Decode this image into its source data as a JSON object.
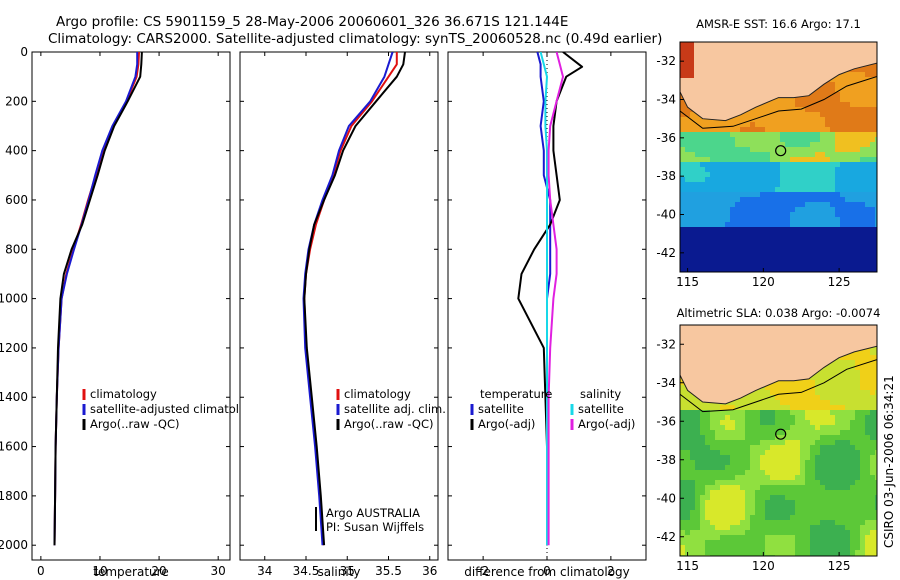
{
  "header": {
    "line1": "Argo profile: CS 5901159_5 28-May-2006 20060601_326 36.671S 121.144E",
    "line2": "Climatology: CARS2000. Satellite-adjusted climatology: synTS_20060528.nc (0.49d earlier)"
  },
  "side_stamp": "CSIRO 03-Jun-2006 06:34:21",
  "colors": {
    "red": "#e01010",
    "blue": "#1a1ad0",
    "black": "#000000",
    "cyan": "#18d8e8",
    "magenta": "#e020e0",
    "land": "#f7c7a0",
    "coast": "#222222"
  },
  "chart_data": [
    {
      "type": "line",
      "title": "",
      "xlabel": "temperature",
      "ylabel": "",
      "xlim": [
        -1.5,
        32
      ],
      "ylim": [
        0,
        2060
      ],
      "y_reversed": true,
      "xticks": [
        "0",
        "10",
        "20",
        "30"
      ],
      "yticks": [
        "0",
        "200",
        "400",
        "600",
        "800",
        "1000",
        "1200",
        "1400",
        "1600",
        "1800",
        "2000"
      ],
      "legend": [
        {
          "label": "climatology",
          "color": "#e01010"
        },
        {
          "label": "satellite-adjusted climatology",
          "color": "#1a1ad0"
        },
        {
          "label": "Argo(..raw -QC)",
          "color": "#000000"
        }
      ],
      "series": [
        {
          "name": "climatology",
          "color": "#e01010",
          "x": [
            16.6,
            16.5,
            16.2,
            14.5,
            12.3,
            10.5,
            9.3,
            8.0,
            6.8,
            5.5,
            4.3,
            3.5,
            3.0,
            2.7,
            2.5,
            2.4,
            2.3
          ],
          "y": [
            0,
            50,
            100,
            200,
            300,
            400,
            500,
            600,
            700,
            800,
            900,
            1000,
            1200,
            1400,
            1600,
            1800,
            2000
          ]
        },
        {
          "name": "satellite-adjusted climatology",
          "color": "#1a1ad0",
          "x": [
            16.3,
            16.3,
            16.0,
            14.4,
            12.1,
            10.4,
            9.2,
            8.1,
            6.9,
            5.6,
            4.4,
            3.5,
            3.0,
            2.7,
            2.5,
            2.4,
            2.3
          ],
          "y": [
            0,
            50,
            100,
            200,
            300,
            400,
            500,
            600,
            700,
            800,
            900,
            1000,
            1200,
            1400,
            1600,
            1800,
            2000
          ]
        },
        {
          "name": "Argo(..raw -QC)",
          "color": "#000000",
          "x": [
            17.1,
            17.0,
            16.8,
            14.7,
            12.4,
            10.8,
            9.6,
            8.3,
            7.0,
            5.2,
            3.9,
            3.3,
            2.9,
            2.7,
            2.5,
            2.4,
            2.3
          ],
          "y": [
            0,
            50,
            100,
            200,
            300,
            400,
            500,
            600,
            700,
            800,
            900,
            1000,
            1200,
            1400,
            1600,
            1800,
            2000
          ]
        }
      ]
    },
    {
      "type": "line",
      "title": "",
      "xlabel": "salinity",
      "ylabel": "",
      "xlim": [
        33.7,
        36.1
      ],
      "ylim": [
        0,
        2060
      ],
      "y_reversed": true,
      "xticks": [
        "34",
        "34.5",
        "35",
        "35.5",
        "36"
      ],
      "legend": [
        {
          "label": "climatology",
          "color": "#e01010"
        },
        {
          "label": "satellite adj. clim.",
          "color": "#1a1ad0"
        },
        {
          "label": "Argo(..raw -QC)",
          "color": "#000000"
        }
      ],
      "annotations": [
        "Argo AUSTRALIA",
        "PI: Susan Wijffels"
      ],
      "series": [
        {
          "name": "climatology",
          "color": "#e01010",
          "x": [
            35.6,
            35.6,
            35.5,
            35.3,
            35.05,
            34.92,
            34.83,
            34.72,
            34.62,
            34.55,
            34.5,
            34.48,
            34.5,
            34.56,
            34.62,
            34.67,
            34.71
          ],
          "y": [
            0,
            50,
            100,
            200,
            300,
            400,
            500,
            600,
            700,
            800,
            900,
            1000,
            1200,
            1400,
            1600,
            1800,
            2000
          ]
        },
        {
          "name": "satellite adj. clim.",
          "color": "#1a1ad0",
          "x": [
            35.55,
            35.5,
            35.45,
            35.28,
            35.02,
            34.9,
            34.82,
            34.7,
            34.6,
            34.53,
            34.49,
            34.47,
            34.49,
            34.55,
            34.61,
            34.66,
            34.7
          ],
          "y": [
            0,
            50,
            100,
            200,
            300,
            400,
            500,
            600,
            700,
            800,
            900,
            1000,
            1200,
            1400,
            1600,
            1800,
            2000
          ]
        },
        {
          "name": "Argo(..raw -QC)",
          "color": "#000000",
          "x": [
            35.7,
            35.68,
            35.6,
            35.35,
            35.1,
            34.95,
            34.85,
            34.72,
            34.6,
            34.54,
            34.5,
            34.48,
            34.51,
            34.57,
            34.63,
            34.68,
            34.72
          ],
          "y": [
            0,
            50,
            100,
            200,
            300,
            400,
            500,
            600,
            700,
            800,
            900,
            1000,
            1200,
            1400,
            1600,
            1800,
            2000
          ]
        }
      ]
    },
    {
      "type": "line",
      "title": "",
      "xlabel": "difference from climatology",
      "ylabel": "",
      "xlim": [
        -3.1,
        3.1
      ],
      "ylim": [
        0,
        2060
      ],
      "y_reversed": true,
      "xticks": [
        "-2",
        "0",
        "2"
      ],
      "legend": [
        {
          "label": "temperature",
          "color": ""
        },
        {
          "label": "satellite",
          "color": "#1a1ad0"
        },
        {
          "label": "Argo(-adj)",
          "color": "#000000"
        },
        {
          "label": "salinity",
          "color": ""
        },
        {
          "label": "satellite",
          "color": "#18d8e8"
        },
        {
          "label": "Argo(-adj)",
          "color": "#e020e0"
        }
      ],
      "series": [
        {
          "name": "temperature satellite",
          "color": "#1a1ad0",
          "x": [
            -0.3,
            -0.2,
            -0.2,
            -0.1,
            -0.2,
            -0.1,
            -0.1,
            0.1,
            0.1,
            0.1,
            0.1,
            0.0,
            0.0,
            0.0,
            0.0,
            0.0,
            0.0
          ],
          "y": [
            0,
            50,
            100,
            200,
            300,
            400,
            500,
            600,
            700,
            800,
            900,
            1000,
            1200,
            1400,
            1600,
            1800,
            2000
          ]
        },
        {
          "name": "temperature Argo(-adj)",
          "color": "#000000",
          "x": [
            0.5,
            1.1,
            0.6,
            0.3,
            0.2,
            0.2,
            0.3,
            0.4,
            0.1,
            -0.4,
            -0.8,
            -0.9,
            -0.1,
            -0.05,
            0.0,
            0.0,
            0.0
          ],
          "y": [
            0,
            60,
            100,
            200,
            300,
            400,
            500,
            600,
            700,
            800,
            900,
            1000,
            1200,
            1400,
            1600,
            1800,
            2000
          ]
        },
        {
          "name": "salinity satellite",
          "color": "#18d8e8",
          "x": [
            -0.2,
            -0.1,
            0.0,
            -0.05,
            -0.05,
            0.0,
            0.0,
            0.0,
            0.0,
            0.0,
            0.0,
            0.0,
            0.0,
            0.0,
            0.0,
            0.0,
            0.0
          ],
          "y": [
            0,
            50,
            100,
            200,
            300,
            400,
            500,
            600,
            700,
            800,
            900,
            1000,
            1200,
            1400,
            1600,
            1800,
            2000
          ]
        },
        {
          "name": "salinity Argo(-adj)",
          "color": "#e020e0",
          "x": [
            0.3,
            0.4,
            0.5,
            0.3,
            0.1,
            0.05,
            0.05,
            0.1,
            0.2,
            0.3,
            0.3,
            0.2,
            0.1,
            0.05,
            0.05,
            0.05,
            0.05
          ],
          "y": [
            0,
            50,
            100,
            200,
            300,
            400,
            500,
            600,
            700,
            800,
            900,
            1000,
            1200,
            1400,
            1600,
            1800,
            2000
          ]
        }
      ]
    },
    {
      "type": "heatmap",
      "title": "AMSR-E SST: 16.6  Argo: 17.1",
      "xlim": [
        114.5,
        127.5
      ],
      "ylim": [
        -43,
        -31
      ],
      "xticks": [
        "115",
        "120",
        "125"
      ],
      "yticks": [
        "-32",
        "-34",
        "-36",
        "-38",
        "-40",
        "-42"
      ],
      "marker": {
        "lon": 121.144,
        "lat": -36.671
      }
    },
    {
      "type": "heatmap",
      "title": "Altimetric SLA: 0.038  Argo: -0.0074",
      "xlim": [
        114.5,
        127.5
      ],
      "ylim": [
        -43,
        -31
      ],
      "xticks": [
        "115",
        "120",
        "125"
      ],
      "yticks": [
        "-32",
        "-34",
        "-36",
        "-38",
        "-40",
        "-42"
      ],
      "marker": {
        "lon": 121.144,
        "lat": -36.671
      }
    }
  ]
}
